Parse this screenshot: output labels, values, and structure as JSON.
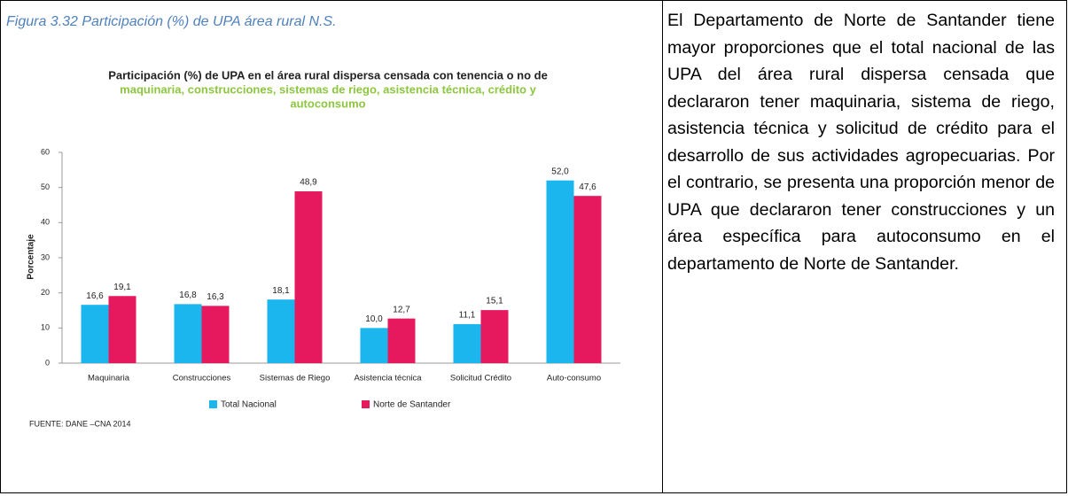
{
  "caption": "Figura 3.32 Participación (%) de UPA área rural N.S.",
  "chart_data": {
    "type": "bar",
    "title": [
      "Participación (%) de UPA en el área rural dispersa censada con tenencia o no de",
      "maquinaria, construcciones, sistemas de riego, asistencia técnica, crédito y",
      "autoconsumo"
    ],
    "ylabel": "Porcentaje",
    "categories": [
      "Maquinaria",
      "Construcciones",
      "Sistemas de Riego",
      "Asistencia técnica",
      "Solicitud Crédito",
      "Auto-consumo"
    ],
    "series": [
      {
        "name": "Total Nacional",
        "color": "#1cb6ee",
        "values": [
          16.6,
          16.8,
          18.1,
          10.0,
          11.1,
          52.0
        ],
        "value_labels": [
          "16,6",
          "16,8",
          "18,1",
          "10,0",
          "11,1",
          "52,0"
        ]
      },
      {
        "name": "Norte de Santander",
        "color": "#e6195e",
        "values": [
          19.1,
          16.3,
          48.9,
          12.7,
          15.1,
          47.6
        ],
        "value_labels": [
          "19,1",
          "16,3",
          "48,9",
          "12,7",
          "15,1",
          "47,6"
        ]
      }
    ],
    "ylim": [
      0,
      60
    ],
    "yticks": [
      0,
      10,
      20,
      30,
      40,
      50,
      60
    ],
    "grid": false,
    "legend": "bottom",
    "source": "FUENTE: DANE –CNA 2014"
  },
  "text": "El Departamento de Norte de Santander tiene mayor proporciones que el total nacional de las UPA del área rural dispersa censada que declararon tener maquinaria, sistema de riego, asistencia técnica y solicitud de crédito para el desarrollo de sus actividades agropecuarias. Por el contrario, se presenta una proporción menor de UPA que declararon tener construcciones y un área específica para autoconsumo en el departamento de Norte de Santander."
}
